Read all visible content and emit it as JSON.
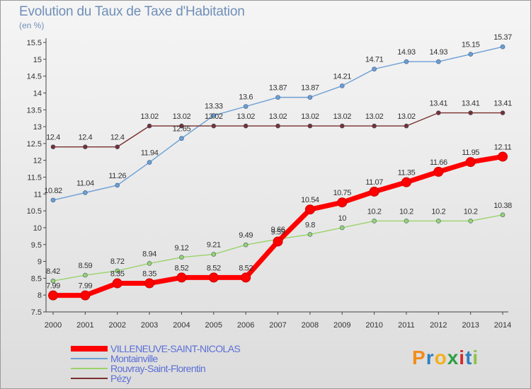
{
  "chart_data": {
    "type": "line",
    "title": "Evolution du Taux de Taxe d'Habitation",
    "unit_label": "(en %)",
    "categories": [
      "2000",
      "2001",
      "2002",
      "2003",
      "2004",
      "2005",
      "2006",
      "2007",
      "2008",
      "2009",
      "2010",
      "2011",
      "2012",
      "2013",
      "2014"
    ],
    "ylim": [
      7.5,
      15.5
    ],
    "yticks": [
      "7.5",
      "8",
      "8.5",
      "9",
      "9.5",
      "10",
      "10.5",
      "11",
      "11.5",
      "12",
      "12.5",
      "13",
      "13.5",
      "14",
      "14.5",
      "15",
      "15.5"
    ],
    "grid": false,
    "legend_position": "bottom-left",
    "series": [
      {
        "name": "Montainville",
        "color": "#6b9fd4",
        "values": [
          10.82,
          11.04,
          11.26,
          11.94,
          12.65,
          13.33,
          13.6,
          13.87,
          13.87,
          14.21,
          14.71,
          14.93,
          14.93,
          15.15,
          15.37
        ],
        "labels": [
          "10.82",
          "11.04",
          "11.26",
          "11.94",
          "12.65",
          "13.33",
          "13.6",
          "13.87",
          "13.87",
          "14.21",
          "14.71",
          "14.93",
          "14.93",
          "15.15",
          "15.37"
        ]
      },
      {
        "name": "Pézy",
        "color": "#7a2e2e",
        "values": [
          12.4,
          12.4,
          12.4,
          13.02,
          13.02,
          13.02,
          13.02,
          13.02,
          13.02,
          13.02,
          13.02,
          13.02,
          13.41,
          13.41,
          13.41
        ],
        "labels": [
          "12.4",
          "12.4",
          "12.4",
          "13.02",
          "13.02",
          "13.02",
          "13.02",
          "13.02",
          "13.02",
          "13.02",
          "13.02",
          "13.02",
          "13.41",
          "13.41",
          "13.41"
        ]
      },
      {
        "name": "Rouvray-Saint-Florentin",
        "color": "#9ad36a",
        "values": [
          8.42,
          8.59,
          8.72,
          8.94,
          9.12,
          9.21,
          9.49,
          9.66,
          9.8,
          10,
          10.2,
          10.2,
          10.2,
          10.2,
          10.38
        ],
        "labels": [
          "8.42",
          "8.59",
          "8.72",
          "8.94",
          "9.12",
          "9.21",
          "9.49",
          "9.66",
          "9.8",
          "10",
          "10.2",
          "10.2",
          "10.2",
          "10.2",
          "10.38"
        ]
      },
      {
        "name": "VILLENEUVE-SAINT-NICOLAS",
        "color": "#ff0000",
        "values": [
          7.99,
          7.99,
          8.35,
          8.35,
          8.52,
          8.52,
          8.52,
          9.59,
          10.54,
          10.75,
          11.07,
          11.35,
          11.66,
          11.95,
          12.11
        ],
        "labels": [
          "7.99",
          "7.99",
          "8.35",
          "8.35",
          "8.52",
          "8.52",
          "8.52",
          "9.59",
          "10.54",
          "10.75",
          "11.07",
          "11.35",
          "11.66",
          "11.95",
          "12.11"
        ]
      }
    ],
    "legend_order": [
      "VILLENEUVE-SAINT-NICOLAS",
      "Montainville",
      "Rouvray-Saint-Florentin",
      "Pézy"
    ]
  },
  "logo": {
    "letters": [
      "P",
      "r",
      "o",
      "x",
      "i",
      "t",
      "i"
    ],
    "colors": [
      "#f28c1b",
      "#2f7fc1",
      "#f2b01b",
      "#2f9e44",
      "#d62828",
      "#2f7fc1",
      "#8bc34a"
    ]
  },
  "colors": {
    "title": "#6f8fb8",
    "axis": "#444444",
    "label": "#333333",
    "legend_text": "#5b6fd6"
  }
}
